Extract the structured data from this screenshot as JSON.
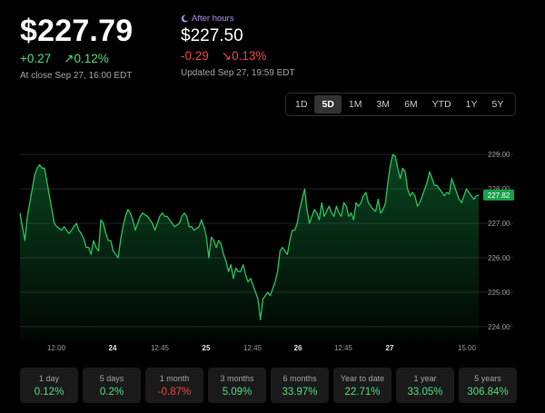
{
  "quote": {
    "price": "$227.79",
    "change": "+0.27",
    "change_pct": "↗0.12%",
    "close_info": "At close Sep 27, 16:00 EDT"
  },
  "after_hours": {
    "label": "After hours",
    "price": "$227.50",
    "change": "-0.29",
    "change_pct": "↘0.13%",
    "updated": "Updated Sep 27, 19:59 EDT"
  },
  "ranges": [
    "1D",
    "5D",
    "1M",
    "3M",
    "6M",
    "YTD",
    "1Y",
    "5Y"
  ],
  "active_range": "5D",
  "colors": {
    "up": "#4ade80",
    "down": "#ef4444",
    "line": "#22c55e",
    "after_hours": "#b38ef3"
  },
  "chart_data": {
    "type": "area",
    "y_ticks": [
      "229.00",
      "228.00",
      "227.00",
      "226.00",
      "225.00",
      "224.00"
    ],
    "ylim": [
      223.6,
      229.4
    ],
    "x_ticks": [
      "12:00",
      "24",
      "12:45",
      "25",
      "12:45",
      "26",
      "12:45",
      "27",
      "15:00"
    ],
    "last_label": "227.82",
    "y": [
      227.3,
      226.9,
      226.5,
      227.2,
      227.6,
      228.0,
      228.4,
      228.6,
      228.7,
      228.6,
      228.6,
      228.2,
      227.8,
      227.4,
      227.0,
      226.9,
      226.85,
      226.8,
      226.9,
      226.8,
      226.7,
      226.8,
      226.9,
      227.0,
      226.8,
      226.7,
      226.55,
      226.3,
      226.3,
      226.1,
      226.5,
      226.3,
      226.2,
      227.1,
      227.0,
      226.7,
      226.5,
      226.5,
      226.2,
      226.1,
      226.0,
      226.5,
      226.9,
      227.2,
      227.4,
      227.3,
      227.1,
      226.8,
      227.0,
      227.2,
      227.3,
      227.25,
      227.2,
      227.1,
      227.0,
      226.8,
      227.0,
      227.2,
      227.3,
      227.2,
      227.2,
      227.1,
      227.0,
      226.9,
      226.95,
      227.0,
      227.2,
      227.3,
      227.2,
      226.9,
      226.9,
      226.8,
      226.85,
      226.9,
      227.1,
      226.9,
      226.6,
      226.0,
      226.6,
      226.5,
      226.3,
      226.5,
      226.4,
      226.1,
      225.9,
      225.6,
      225.8,
      225.4,
      225.7,
      225.6,
      225.6,
      225.8,
      225.5,
      225.3,
      225.4,
      225.2,
      225.0,
      224.8,
      224.2,
      224.8,
      224.9,
      225.0,
      224.9,
      225.1,
      225.3,
      225.6,
      226.2,
      226.3,
      226.2,
      226.1,
      226.5,
      226.8,
      226.8,
      227.0,
      227.4,
      227.7,
      228.0,
      227.4,
      227.0,
      227.2,
      227.4,
      227.3,
      227.1,
      227.6,
      227.2,
      227.35,
      227.5,
      227.3,
      227.2,
      227.5,
      227.3,
      227.2,
      227.6,
      227.5,
      227.2,
      227.3,
      227.1,
      227.6,
      227.5,
      227.6,
      227.8,
      227.9,
      227.6,
      227.5,
      227.4,
      227.35,
      227.7,
      227.3,
      227.4,
      227.6,
      228.2,
      228.7,
      229.0,
      228.95,
      228.6,
      228.3,
      228.6,
      228.5,
      228.0,
      227.8,
      227.9,
      227.8,
      227.5,
      227.6,
      227.8,
      228.0,
      228.2,
      228.5,
      228.3,
      228.1,
      228.1,
      228.0,
      227.9,
      227.8,
      227.9,
      227.85,
      228.3,
      228.1,
      227.9,
      227.7,
      227.6,
      227.8,
      228.0,
      227.9,
      227.8,
      227.7,
      227.8,
      227.82
    ]
  },
  "stats": [
    {
      "label": "1 day",
      "value": "0.12%",
      "dir": "up"
    },
    {
      "label": "5 days",
      "value": "0.2%",
      "dir": "up"
    },
    {
      "label": "1 month",
      "value": "-0.87%",
      "dir": "down"
    },
    {
      "label": "3 months",
      "value": "5.09%",
      "dir": "up"
    },
    {
      "label": "6 months",
      "value": "33.97%",
      "dir": "up"
    },
    {
      "label": "Year to date",
      "value": "22.71%",
      "dir": "up"
    },
    {
      "label": "1 year",
      "value": "33.05%",
      "dir": "up"
    },
    {
      "label": "5 years",
      "value": "306.84%",
      "dir": "up"
    }
  ]
}
